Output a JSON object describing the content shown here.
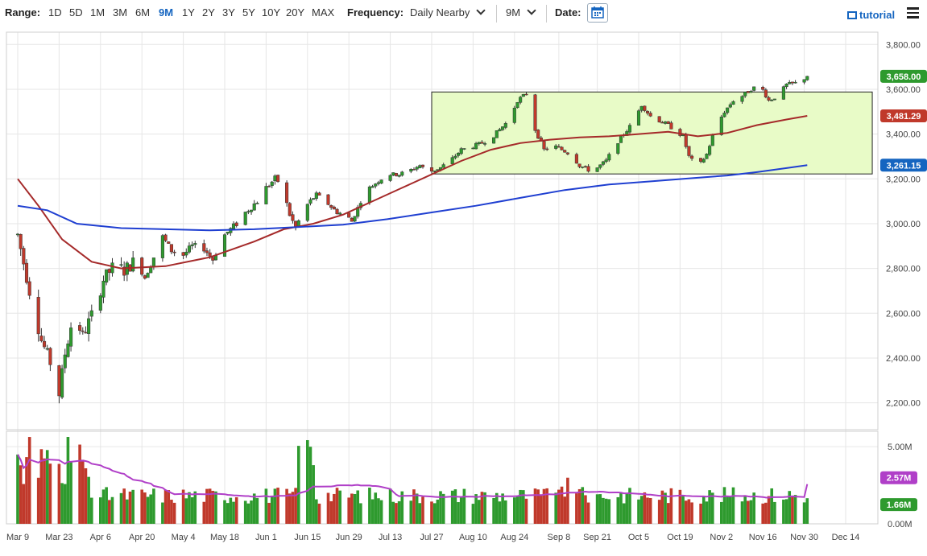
{
  "toolbar": {
    "range_label": "Range:",
    "ranges": [
      "1D",
      "5D",
      "1M",
      "3M",
      "6M",
      "9M",
      "1Y",
      "2Y",
      "3Y",
      "5Y",
      "10Y",
      "20Y",
      "MAX"
    ],
    "active_range": "9M",
    "frequency_label": "Frequency:",
    "frequency_value": "Daily Nearby",
    "period_value": "9M",
    "date_label": "Date:",
    "date_icon": "calendar-icon",
    "tutorial_label": "tutorial",
    "tutorial_icon": "film-icon",
    "menu_icon": "hamburger-menu-icon"
  },
  "chart_data": {
    "type": "candlestick",
    "price_axis": {
      "ticks": [
        "3,800.00",
        "3,600.00",
        "3,400.00",
        "3,200.00",
        "3,000.00",
        "2,800.00",
        "2,600.00",
        "2,400.00",
        "2,200.00"
      ],
      "tick_values": [
        3800,
        3600,
        3400,
        3200,
        3000,
        2800,
        2600,
        2400,
        2200
      ],
      "ylim": [
        2080,
        3855
      ]
    },
    "volume_axis": {
      "ticks": [
        "5.00M",
        "0.00M"
      ],
      "tick_values": [
        5.0,
        0.0
      ],
      "ylim": [
        0,
        6.0
      ]
    },
    "x_labels": [
      "Mar 9",
      "Mar 23",
      "Apr 6",
      "Apr 20",
      "May 4",
      "May 18",
      "Jun 1",
      "Jun 15",
      "Jun 29",
      "Jul 13",
      "Jul 27",
      "Aug 10",
      "Aug 24",
      "Sep 8",
      "Sep 21",
      "Oct 5",
      "Oct 19",
      "Nov 2",
      "Nov 16",
      "Nov 30",
      "Dec 14"
    ],
    "x_label_days": [
      0,
      14,
      28,
      42,
      56,
      70,
      84,
      98,
      112,
      126,
      140,
      154,
      168,
      183,
      196,
      210,
      224,
      238,
      252,
      266,
      280
    ],
    "last_price_days": 267,
    "price_path": [
      [
        0,
        2950
      ],
      [
        4,
        2700
      ],
      [
        8,
        2480
      ],
      [
        11,
        2380
      ],
      [
        14,
        2240
      ],
      [
        16,
        2420
      ],
      [
        19,
        2600
      ],
      [
        22,
        2500
      ],
      [
        26,
        2620
      ],
      [
        29,
        2750
      ],
      [
        33,
        2820
      ],
      [
        36,
        2790
      ],
      [
        40,
        2840
      ],
      [
        43,
        2760
      ],
      [
        46,
        2850
      ],
      [
        49,
        2940
      ],
      [
        52,
        2880
      ],
      [
        56,
        2860
      ],
      [
        59,
        2900
      ],
      [
        63,
        2890
      ],
      [
        66,
        2840
      ],
      [
        70,
        2950
      ],
      [
        74,
        3000
      ],
      [
        77,
        3050
      ],
      [
        81,
        3100
      ],
      [
        84,
        3160
      ],
      [
        87,
        3200
      ],
      [
        89,
        3180
      ],
      [
        92,
        3040
      ],
      [
        94,
        2980
      ],
      [
        97,
        3070
      ],
      [
        101,
        3130
      ],
      [
        104,
        3100
      ],
      [
        108,
        3050
      ],
      [
        111,
        3040
      ],
      [
        113,
        3010
      ],
      [
        116,
        3100
      ],
      [
        119,
        3160
      ],
      [
        122,
        3190
      ],
      [
        125,
        3220
      ],
      [
        129,
        3220
      ],
      [
        133,
        3240
      ],
      [
        136,
        3260
      ],
      [
        139,
        3230
      ],
      [
        143,
        3250
      ],
      [
        147,
        3290
      ],
      [
        150,
        3330
      ],
      [
        153,
        3340
      ],
      [
        157,
        3360
      ],
      [
        160,
        3380
      ],
      [
        163,
        3420
      ],
      [
        166,
        3460
      ],
      [
        169,
        3550
      ],
      [
        172,
        3580
      ],
      [
        175,
        3420
      ],
      [
        178,
        3330
      ],
      [
        181,
        3350
      ],
      [
        184,
        3330
      ],
      [
        187,
        3310
      ],
      [
        190,
        3260
      ],
      [
        193,
        3240
      ],
      [
        196,
        3250
      ],
      [
        199,
        3280
      ],
      [
        202,
        3350
      ],
      [
        205,
        3400
      ],
      [
        208,
        3450
      ],
      [
        211,
        3530
      ],
      [
        214,
        3480
      ],
      [
        217,
        3460
      ],
      [
        220,
        3440
      ],
      [
        222,
        3420
      ],
      [
        225,
        3390
      ],
      [
        227,
        3300
      ],
      [
        230,
        3250
      ],
      [
        233,
        3310
      ],
      [
        236,
        3430
      ],
      [
        239,
        3500
      ],
      [
        242,
        3550
      ],
      [
        245,
        3570
      ],
      [
        248,
        3600
      ],
      [
        251,
        3620
      ],
      [
        254,
        3550
      ],
      [
        257,
        3570
      ],
      [
        260,
        3620
      ],
      [
        264,
        3630
      ],
      [
        267,
        3658
      ]
    ],
    "series": [
      {
        "name": "",
        "color": "#a52a2a",
        "points": [
          [
            0,
            3200
          ],
          [
            7,
            3080
          ],
          [
            15,
            2930
          ],
          [
            25,
            2830
          ],
          [
            35,
            2800
          ],
          [
            50,
            2810
          ],
          [
            65,
            2850
          ],
          [
            80,
            2920
          ],
          [
            90,
            2975
          ],
          [
            100,
            3000
          ],
          [
            110,
            3040
          ],
          [
            120,
            3100
          ],
          [
            130,
            3160
          ],
          [
            140,
            3220
          ],
          [
            150,
            3280
          ],
          [
            160,
            3330
          ],
          [
            170,
            3360
          ],
          [
            180,
            3375
          ],
          [
            190,
            3385
          ],
          [
            200,
            3390
          ],
          [
            210,
            3400
          ],
          [
            220,
            3410
          ],
          [
            230,
            3390
          ],
          [
            240,
            3405
          ],
          [
            250,
            3440
          ],
          [
            260,
            3465
          ],
          [
            267,
            3481.29
          ]
        ]
      },
      {
        "name": "",
        "color": "#1f3fd1",
        "points": [
          [
            0,
            3080
          ],
          [
            10,
            3060
          ],
          [
            20,
            3000
          ],
          [
            35,
            2980
          ],
          [
            50,
            2975
          ],
          [
            65,
            2970
          ],
          [
            80,
            2975
          ],
          [
            95,
            2985
          ],
          [
            110,
            2995
          ],
          [
            125,
            3020
          ],
          [
            140,
            3050
          ],
          [
            155,
            3080
          ],
          [
            170,
            3115
          ],
          [
            185,
            3150
          ],
          [
            200,
            3175
          ],
          [
            215,
            3190
          ],
          [
            230,
            3205
          ],
          [
            240,
            3215
          ],
          [
            250,
            3230
          ],
          [
            260,
            3248
          ],
          [
            267,
            3261.15
          ]
        ]
      }
    ],
    "price_tags": [
      {
        "label": "3,658.00",
        "value": 3658,
        "color": "#2e9a2e"
      },
      {
        "label": "3,481.29",
        "value": 3481.29,
        "color": "#c0392b"
      },
      {
        "label": "3,261.15",
        "value": 3261.15,
        "color": "#1565c0"
      }
    ],
    "volume_tags": [
      {
        "label": "2.57M",
        "value": 2.57,
        "color": "#b03fc8"
      },
      {
        "label": "1.66M",
        "value": 1.66,
        "color": "#2e9a2e"
      }
    ],
    "range_box": {
      "start_day": 140,
      "end_day": 289,
      "high": 3588,
      "low": 3222,
      "fill": "#e8fbc7"
    },
    "volume_avg_color": "#b03fc8",
    "up_color": "#2e9a2e",
    "down_color": "#c0392b"
  }
}
